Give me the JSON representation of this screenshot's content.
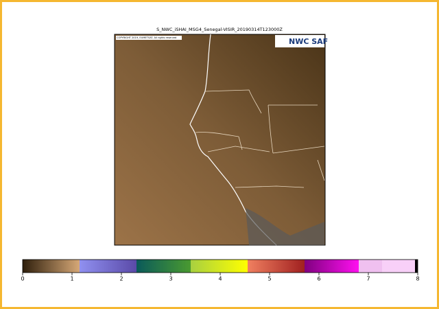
{
  "title": "S_NWC_iSHAI_MSG4_Senegal-VISIR_20190314T123000Z",
  "copyright": "COPYRIGHT 2019, EUMETSAT. All rights reserved",
  "logo": "NWC SAF",
  "colorbar": {
    "range": [
      0,
      8
    ],
    "ticks": [
      0,
      1,
      2,
      3,
      4,
      5,
      6,
      7,
      8
    ]
  }
}
